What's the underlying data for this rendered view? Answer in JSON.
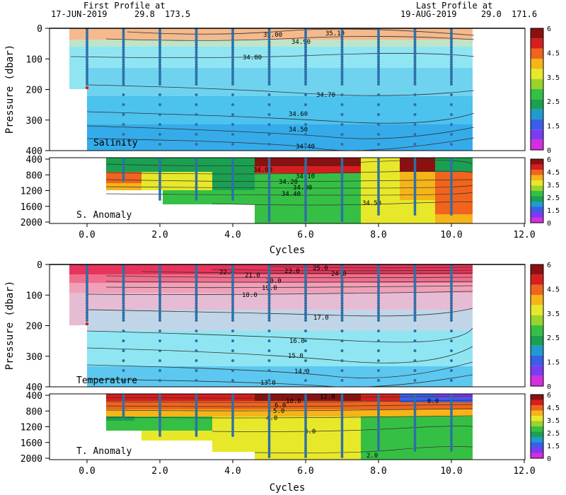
{
  "header": {
    "first_profile": "First Profile at",
    "first_date": "17-JUN-2019",
    "first_lat": "29.8",
    "first_lon": "173.5",
    "last_profile": "Last Profile at",
    "last_date": "19-AUG-2019",
    "last_lat": "29.0",
    "last_lon": "171.6"
  },
  "colors": {
    "profile_dots": "#2f6fa6",
    "first_profile_marker": "#d62020",
    "anomaly_scale": [
      "#d62de0",
      "#7a3cf0",
      "#3b5ee8",
      "#1f9bd0",
      "#1aa050",
      "#35c045",
      "#9ad32a",
      "#e8e82a",
      "#f5b418",
      "#f0641e",
      "#d61e1e",
      "#8c1010"
    ]
  },
  "chart_data": [
    {
      "type": "heatmap",
      "label": "Salinity",
      "ylabel": "Pressure (dbar)",
      "y_ticks": [
        "0",
        "100",
        "200",
        "300",
        "400"
      ],
      "ylim": [
        400,
        0
      ],
      "xlim": [
        -1,
        12
      ],
      "cycles": [
        0,
        1,
        2,
        3,
        4,
        5,
        6,
        7,
        8,
        9,
        10
      ],
      "contours": [
        {
          "label": "35.00",
          "value": 35.0
        },
        {
          "label": "35.10",
          "value": 35.1
        },
        {
          "label": "34.90",
          "value": 34.9
        },
        {
          "label": "34.80",
          "value": 34.8
        },
        {
          "label": "34.70",
          "value": 34.7
        },
        {
          "label": "34.60",
          "value": 34.6
        },
        {
          "label": "34.50",
          "value": 34.5
        },
        {
          "label": "34.40",
          "value": 34.4
        }
      ],
      "colorbar_ticks": [
        "6",
        "4.5",
        "3.5",
        "2.5",
        "1.5",
        "0"
      ]
    },
    {
      "type": "heatmap",
      "label": "S. Anomaly",
      "y_ticks": [
        "400",
        "800",
        "1200",
        "1600",
        "2000"
      ],
      "ylim": [
        2000,
        400
      ],
      "contours": [
        {
          "label": "34.00",
          "value": 34.0
        },
        {
          "label": "34.10",
          "value": 34.1
        },
        {
          "label": "34.20",
          "value": 34.2
        },
        {
          "label": "34.30",
          "value": 34.3
        },
        {
          "label": "34.40",
          "value": 34.4
        },
        {
          "label": "34.50",
          "value": 34.5
        }
      ],
      "x_ticks": [
        "0.0",
        "2.0",
        "4.0",
        "6.0",
        "8.0",
        "10.0",
        "12.0"
      ],
      "xlabel": "Cycles",
      "colorbar_ticks": [
        "6",
        "4.5",
        "3.5",
        "2.5",
        "1.5",
        "0"
      ]
    },
    {
      "type": "heatmap",
      "label": "Temperature",
      "ylabel": "Pressure (dbar)",
      "y_ticks": [
        "0",
        "100",
        "200",
        "300",
        "400"
      ],
      "ylim": [
        400,
        0
      ],
      "contours": [
        {
          "label": "25.0",
          "value": 25.0
        },
        {
          "label": "24.0",
          "value": 24.0
        },
        {
          "label": "23.0",
          "value": 23.0
        },
        {
          "label": "22.0",
          "value": 22.0
        },
        {
          "label": "21.0",
          "value": 21.0
        },
        {
          "label": "20.0",
          "value": 20.0
        },
        {
          "label": "19.0",
          "value": 19.0
        },
        {
          "label": "18.0",
          "value": 18.0
        },
        {
          "label": "17.0",
          "value": 17.0
        },
        {
          "label": "16.0",
          "value": 16.0
        },
        {
          "label": "15.0",
          "value": 15.0
        },
        {
          "label": "14.0",
          "value": 14.0
        },
        {
          "label": "13.0",
          "value": 13.0
        }
      ],
      "colorbar_ticks": [
        "6",
        "4.5",
        "3.5",
        "2.5",
        "1.5",
        "0"
      ]
    },
    {
      "type": "heatmap",
      "label": "T. Anomaly",
      "y_ticks": [
        "400",
        "800",
        "1200",
        "1600",
        "2000"
      ],
      "ylim": [
        2000,
        400
      ],
      "contours": [
        {
          "label": "12.0",
          "value": 12.0
        },
        {
          "label": "10.0",
          "value": 10.0
        },
        {
          "label": "8.0",
          "value": 8.0
        },
        {
          "label": "6.0",
          "value": 6.0
        },
        {
          "label": "5.0",
          "value": 5.0
        },
        {
          "label": "4.0",
          "value": 4.0
        },
        {
          "label": "3.0",
          "value": 3.0
        },
        {
          "label": "2.0",
          "value": 2.0
        }
      ],
      "x_ticks": [
        "0.0",
        "2.0",
        "4.0",
        "6.0",
        "8.0",
        "10.0",
        "12.0"
      ],
      "xlabel": "Cycles",
      "colorbar_ticks": [
        "6",
        "4.5",
        "3.5",
        "2.5",
        "1.5",
        "0"
      ]
    }
  ]
}
